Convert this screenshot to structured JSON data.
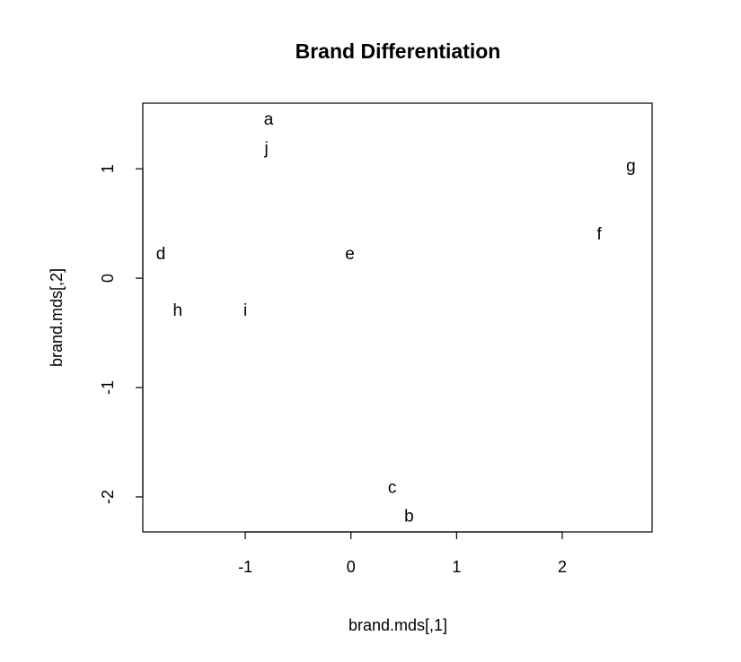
{
  "chart_data": {
    "type": "scatter",
    "title": "Brand Differentiation",
    "xlabel": "brand.mds[,1]",
    "ylabel": "brand.mds[,2]",
    "xlim": [
      -1.97,
      2.85
    ],
    "ylim": [
      -2.32,
      1.6
    ],
    "x_ticks": [
      -1,
      0,
      1,
      2
    ],
    "y_ticks": [
      -2,
      -1,
      0,
      1
    ],
    "x_tick_labels": [
      "-1",
      "0",
      "1",
      "2"
    ],
    "y_tick_labels": [
      "-2",
      "-1",
      "0",
      "1"
    ],
    "grid": false,
    "legend": false,
    "points": [
      {
        "label": "a",
        "x": -0.78,
        "y": 1.45
      },
      {
        "label": "j",
        "x": -0.8,
        "y": 1.18
      },
      {
        "label": "g",
        "x": 2.65,
        "y": 1.02
      },
      {
        "label": "f",
        "x": 2.35,
        "y": 0.4
      },
      {
        "label": "d",
        "x": -1.8,
        "y": 0.22
      },
      {
        "label": "e",
        "x": -0.01,
        "y": 0.22
      },
      {
        "label": "h",
        "x": -1.64,
        "y": -0.3
      },
      {
        "label": "i",
        "x": -1.0,
        "y": -0.3
      },
      {
        "label": "c",
        "x": 0.39,
        "y": -1.92
      },
      {
        "label": "b",
        "x": 0.55,
        "y": -2.18
      }
    ]
  }
}
